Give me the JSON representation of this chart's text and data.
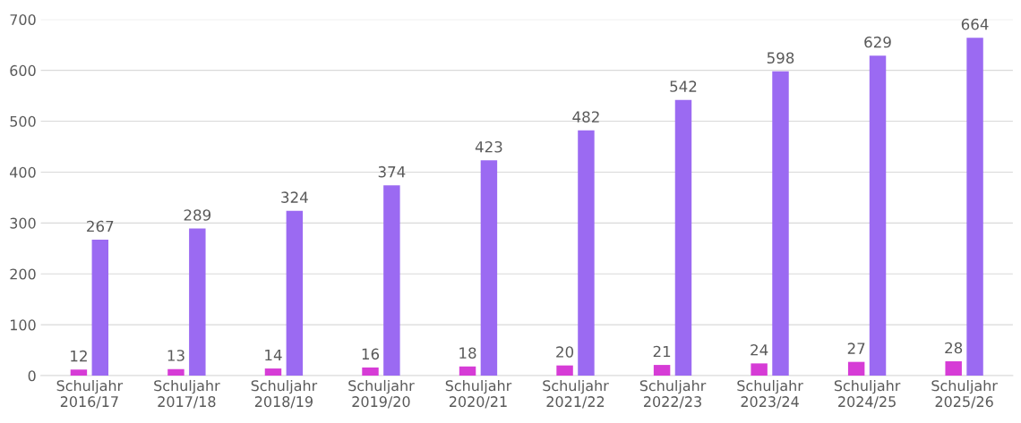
{
  "chart_data": {
    "type": "bar",
    "categories": [
      "Schuljahr\n2016/17",
      "Schuljahr\n2017/18",
      "Schuljahr\n2018/19",
      "Schuljahr\n2019/20",
      "Schuljahr\n2020/21",
      "Schuljahr\n2021/22",
      "Schuljahr\n2022/23",
      "Schuljahr\n2023/24",
      "Schuljahr\n2024/25",
      "Schuljahr\n2025/26"
    ],
    "series": [
      {
        "color": "#d63cd6",
        "values": [
          12,
          13,
          14,
          16,
          18,
          20,
          21,
          24,
          27,
          28
        ]
      },
      {
        "color": "#9b6af2",
        "values": [
          267,
          289,
          324,
          374,
          423,
          482,
          542,
          598,
          629,
          664
        ]
      }
    ],
    "ylim": [
      0,
      700
    ],
    "yticks": [
      0,
      100,
      200,
      300,
      400,
      500,
      600,
      700
    ],
    "grid": "y",
    "data_labels": true,
    "legend": false
  }
}
